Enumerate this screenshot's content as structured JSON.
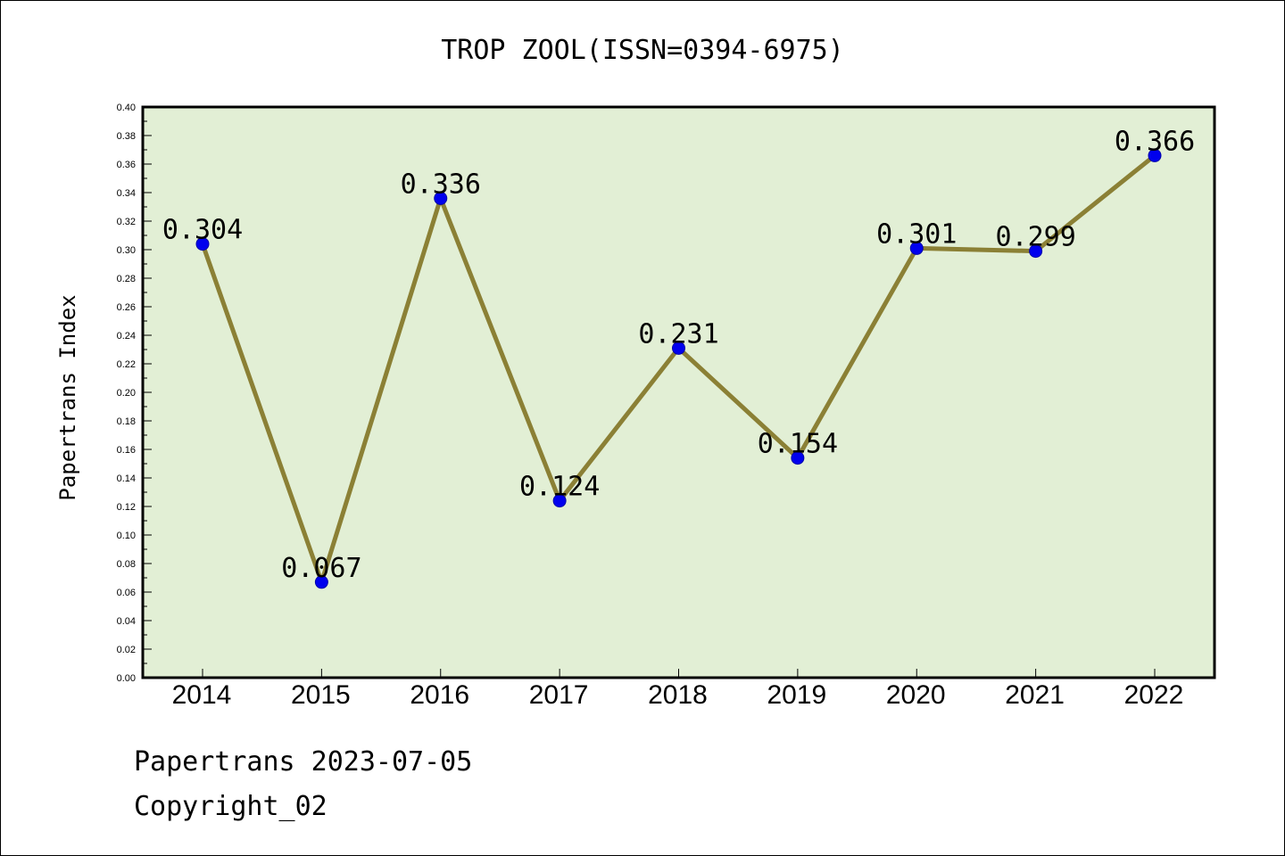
{
  "chart_data": {
    "type": "line",
    "title": "TROP ZOOL(ISSN=0394-6975)",
    "xlabel": "",
    "ylabel": "Papertrans Index",
    "categories": [
      "2014",
      "2015",
      "2016",
      "2017",
      "2018",
      "2019",
      "2020",
      "2021",
      "2022"
    ],
    "values": [
      0.304,
      0.067,
      0.336,
      0.124,
      0.231,
      0.154,
      0.301,
      0.299,
      0.366
    ],
    "data_labels": [
      "0.304",
      "0.067",
      "0.336",
      "0.124",
      "0.231",
      "0.154",
      "0.301",
      "0.299",
      "0.366"
    ],
    "ylim": [
      0,
      0.4
    ],
    "yticks": [
      "0.00",
      "0.02",
      "0.04",
      "0.06",
      "0.08",
      "0.10",
      "0.12",
      "0.14",
      "0.16",
      "0.18",
      "0.20",
      "0.22",
      "0.24",
      "0.26",
      "0.28",
      "0.30",
      "0.32",
      "0.34",
      "0.36",
      "0.38",
      "0.40"
    ],
    "grid": false,
    "legend": "none",
    "colors": {
      "plot_background": "#e2efd5",
      "line": "#8b8035",
      "marker": "#0000ee",
      "marker_edge": "#0000aa"
    }
  },
  "footer": {
    "line1": "Papertrans 2023-07-05",
    "line2": "Copyright_02"
  }
}
